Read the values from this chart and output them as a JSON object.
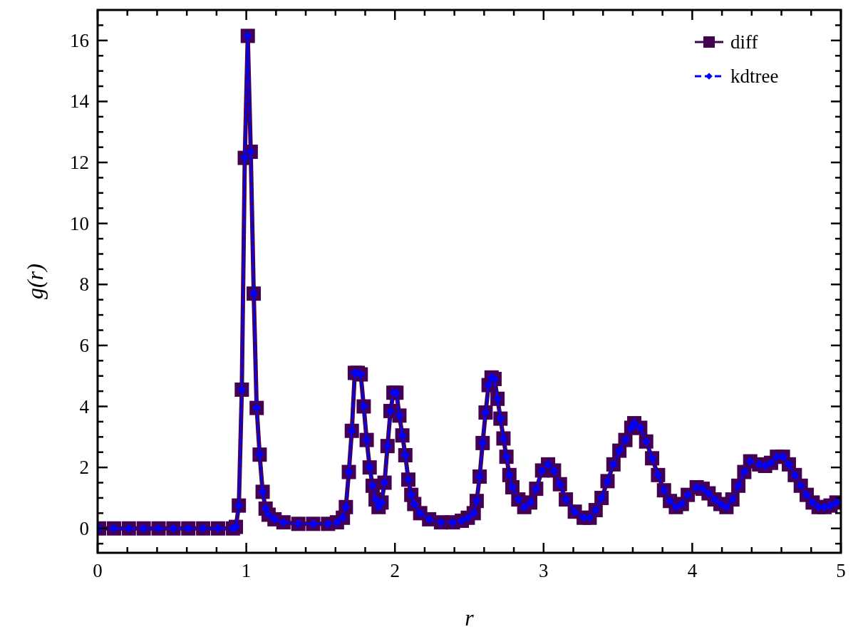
{
  "chart_data": {
    "type": "line",
    "xlabel": "r",
    "ylabel": "g(r)",
    "x": [
      0.01,
      0.11,
      0.21,
      0.31,
      0.41,
      0.51,
      0.61,
      0.71,
      0.81,
      0.91,
      0.93,
      0.95,
      0.97,
      0.99,
      1.01,
      1.03,
      1.05,
      1.07,
      1.09,
      1.11,
      1.13,
      1.15,
      1.19,
      1.25,
      1.35,
      1.45,
      1.55,
      1.61,
      1.65,
      1.67,
      1.69,
      1.71,
      1.73,
      1.75,
      1.77,
      1.79,
      1.81,
      1.83,
      1.85,
      1.87,
      1.89,
      1.91,
      1.93,
      1.95,
      1.97,
      1.99,
      2.01,
      2.03,
      2.05,
      2.07,
      2.09,
      2.11,
      2.13,
      2.17,
      2.23,
      2.31,
      2.39,
      2.45,
      2.49,
      2.53,
      2.55,
      2.57,
      2.59,
      2.61,
      2.63,
      2.65,
      2.67,
      2.69,
      2.71,
      2.73,
      2.75,
      2.77,
      2.79,
      2.83,
      2.87,
      2.91,
      2.95,
      2.99,
      3.03,
      3.07,
      3.11,
      3.15,
      3.21,
      3.27,
      3.31,
      3.35,
      3.39,
      3.43,
      3.47,
      3.51,
      3.55,
      3.59,
      3.61,
      3.65,
      3.69,
      3.73,
      3.77,
      3.81,
      3.85,
      3.89,
      3.93,
      3.97,
      4.03,
      4.07,
      4.11,
      4.15,
      4.19,
      4.23,
      4.27,
      4.31,
      4.35,
      4.39,
      4.45,
      4.49,
      4.53,
      4.57,
      4.61,
      4.65,
      4.69,
      4.73,
      4.77,
      4.81,
      4.85,
      4.89,
      4.93,
      4.97
    ],
    "series": [
      {
        "name": "diff",
        "color": "#440154",
        "marker": "square",
        "line_style": "solid",
        "values": [
          0,
          0,
          0,
          0,
          0,
          0,
          0,
          0,
          0,
          0,
          0.05,
          0.75,
          4.55,
          12.15,
          16.15,
          12.35,
          7.7,
          3.95,
          2.42,
          1.2,
          0.65,
          0.45,
          0.3,
          0.2,
          0.15,
          0.15,
          0.15,
          0.2,
          0.35,
          0.7,
          1.85,
          3.2,
          5.1,
          5.1,
          5.05,
          4.0,
          2.9,
          2.0,
          1.4,
          0.95,
          0.7,
          0.85,
          1.5,
          2.7,
          3.85,
          4.45,
          4.45,
          3.7,
          3.05,
          2.4,
          1.6,
          1.1,
          0.8,
          0.5,
          0.3,
          0.2,
          0.2,
          0.25,
          0.35,
          0.5,
          0.9,
          1.7,
          2.8,
          3.8,
          4.7,
          4.95,
          4.9,
          4.25,
          3.6,
          2.95,
          2.35,
          1.75,
          1.35,
          0.95,
          0.7,
          0.85,
          1.3,
          1.9,
          2.1,
          1.9,
          1.45,
          0.95,
          0.55,
          0.35,
          0.35,
          0.6,
          1.0,
          1.55,
          2.1,
          2.55,
          2.9,
          3.3,
          3.45,
          3.3,
          2.85,
          2.3,
          1.75,
          1.25,
          0.9,
          0.7,
          0.8,
          1.1,
          1.35,
          1.3,
          1.15,
          0.95,
          0.8,
          0.7,
          0.95,
          1.4,
          1.85,
          2.2,
          2.1,
          2.05,
          2.15,
          2.35,
          2.35,
          2.1,
          1.75,
          1.4,
          1.1,
          0.85,
          0.7,
          0.7,
          0.75,
          0.85
        ]
      },
      {
        "name": "kdtree",
        "color": "#0000ff",
        "marker": "diamond",
        "line_style": "dashed",
        "values": [
          0,
          0,
          0,
          0,
          0,
          0,
          0,
          0,
          0,
          0,
          0.05,
          0.75,
          4.55,
          12.15,
          16.15,
          12.35,
          7.7,
          3.95,
          2.42,
          1.2,
          0.65,
          0.45,
          0.3,
          0.2,
          0.15,
          0.15,
          0.15,
          0.2,
          0.35,
          0.7,
          1.85,
          3.2,
          5.1,
          5.1,
          5.05,
          4.0,
          2.9,
          2.0,
          1.4,
          0.95,
          0.7,
          0.85,
          1.5,
          2.7,
          3.85,
          4.45,
          4.45,
          3.7,
          3.05,
          2.4,
          1.6,
          1.1,
          0.8,
          0.5,
          0.3,
          0.2,
          0.2,
          0.25,
          0.35,
          0.5,
          0.9,
          1.7,
          2.8,
          3.8,
          4.7,
          4.95,
          4.9,
          4.25,
          3.6,
          2.95,
          2.35,
          1.75,
          1.35,
          0.95,
          0.7,
          0.85,
          1.3,
          1.9,
          2.1,
          1.9,
          1.45,
          0.95,
          0.55,
          0.35,
          0.35,
          0.6,
          1.0,
          1.55,
          2.1,
          2.55,
          2.9,
          3.3,
          3.45,
          3.3,
          2.85,
          2.3,
          1.75,
          1.25,
          0.9,
          0.7,
          0.8,
          1.1,
          1.35,
          1.3,
          1.15,
          0.95,
          0.8,
          0.7,
          0.95,
          1.4,
          1.85,
          2.2,
          2.1,
          2.05,
          2.15,
          2.35,
          2.35,
          2.1,
          1.75,
          1.4,
          1.1,
          0.85,
          0.7,
          0.7,
          0.75,
          0.85
        ]
      }
    ],
    "xlim": [
      0,
      5
    ],
    "xticks": [
      0,
      {
        "value": 0.2,
        "label": null
      },
      {
        "value": 0.4,
        "label": null
      },
      {
        "value": 0.6,
        "label": null
      },
      {
        "value": 0.8,
        "label": null
      },
      1,
      {
        "value": 1.2,
        "label": null
      },
      {
        "value": 1.4,
        "label": null
      },
      {
        "value": 1.6,
        "label": null
      },
      {
        "value": 1.8,
        "label": null
      },
      2,
      {
        "value": 2.2,
        "label": null
      },
      {
        "value": 2.4,
        "label": null
      },
      {
        "value": 2.6,
        "label": null
      },
      {
        "value": 2.8,
        "label": null
      },
      3,
      {
        "value": 3.2,
        "label": null
      },
      {
        "value": 3.4,
        "label": null
      },
      {
        "value": 3.6,
        "label": null
      },
      {
        "value": 3.8,
        "label": null
      },
      4,
      {
        "value": 4.2,
        "label": null
      },
      {
        "value": 4.4,
        "label": null
      },
      {
        "value": 4.6,
        "label": null
      },
      {
        "value": 4.8,
        "label": null
      },
      5
    ],
    "ylim": [
      -0.8,
      17
    ],
    "yticks": [
      {
        "value": -0.5,
        "label": null
      },
      0,
      {
        "value": 0.5,
        "label": null
      },
      {
        "value": 1,
        "label": null
      },
      {
        "value": 1.5,
        "label": null
      },
      2,
      {
        "value": 2.5,
        "label": null
      },
      {
        "value": 3,
        "label": null
      },
      {
        "value": 3.5,
        "label": null
      },
      4,
      {
        "value": 4.5,
        "label": null
      },
      {
        "value": 5,
        "label": null
      },
      {
        "value": 5.5,
        "label": null
      },
      6,
      {
        "value": 6.5,
        "label": null
      },
      {
        "value": 7,
        "label": null
      },
      {
        "value": 7.5,
        "label": null
      },
      8,
      {
        "value": 8.5,
        "label": null
      },
      {
        "value": 9,
        "label": null
      },
      {
        "value": 9.5,
        "label": null
      },
      10,
      {
        "value": 10.5,
        "label": null
      },
      {
        "value": 11,
        "label": null
      },
      {
        "value": 11.5,
        "label": null
      },
      12,
      {
        "value": 12.5,
        "label": null
      },
      {
        "value": 13,
        "label": null
      },
      {
        "value": 13.5,
        "label": null
      },
      14,
      {
        "value": 14.5,
        "label": null
      },
      {
        "value": 15,
        "label": null
      },
      {
        "value": 15.5,
        "label": null
      },
      16,
      {
        "value": 16.5,
        "label": null
      }
    ],
    "legend": "top right",
    "grid": false
  }
}
